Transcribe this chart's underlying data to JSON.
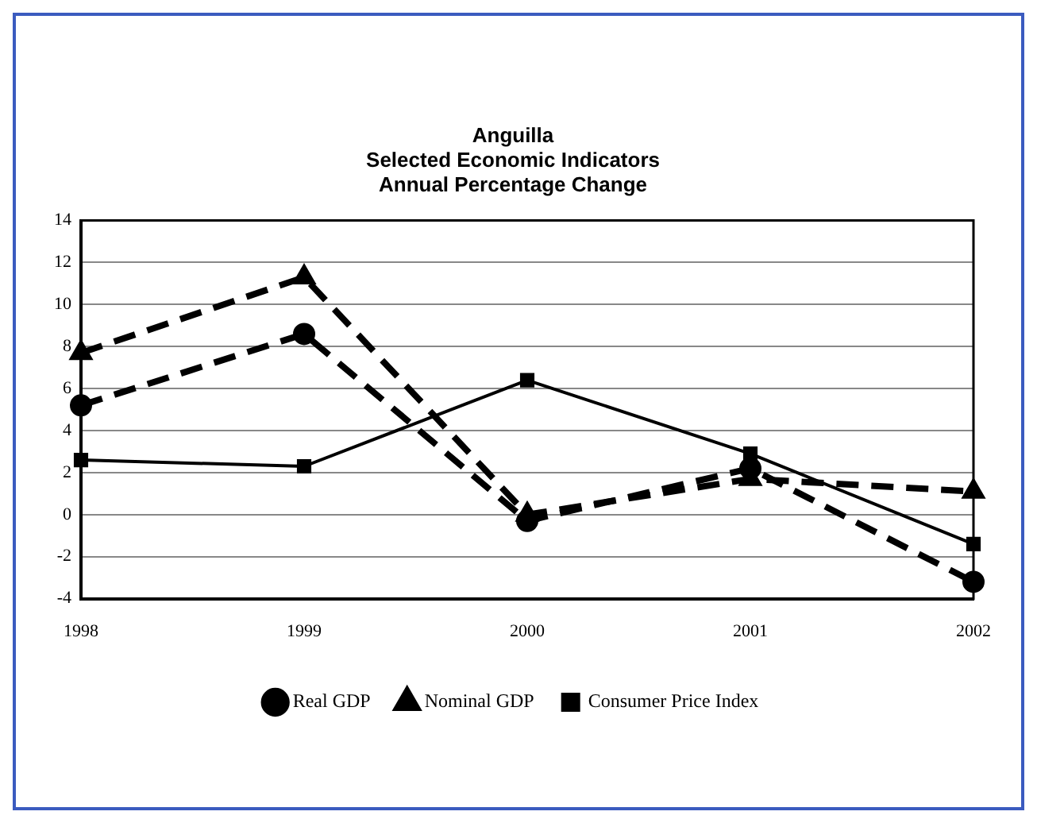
{
  "chart_data": {
    "type": "line",
    "title": "Anguilla",
    "subtitle": "Selected Economic Indicators\nAnnual Percentage Change",
    "categories": [
      "1998",
      "1999",
      "2000",
      "2001",
      "2002"
    ],
    "series": [
      {
        "name": "Real GDP",
        "color": "#000000",
        "values": [
          5.2,
          8.6,
          -0.3,
          2.2,
          -3.2
        ],
        "marker": "circle",
        "line_style": "dashed"
      },
      {
        "name": "Nominal GDP",
        "color": "#000000",
        "values": [
          7.7,
          11.3,
          0,
          1.7,
          1.1
        ],
        "marker": "triangle",
        "line_style": "dashed"
      },
      {
        "name": "Consumer Price Index",
        "color": "#000000",
        "values": [
          2.6,
          2.3,
          6.4,
          2.9,
          -1.4
        ],
        "marker": "square",
        "line_style": "solid"
      }
    ],
    "ylim": [
      -4,
      14
    ],
    "yticks": [
      -4,
      -2,
      0,
      2,
      4,
      6,
      8,
      10,
      12,
      14
    ],
    "grid": "y",
    "legend": "bottom"
  }
}
